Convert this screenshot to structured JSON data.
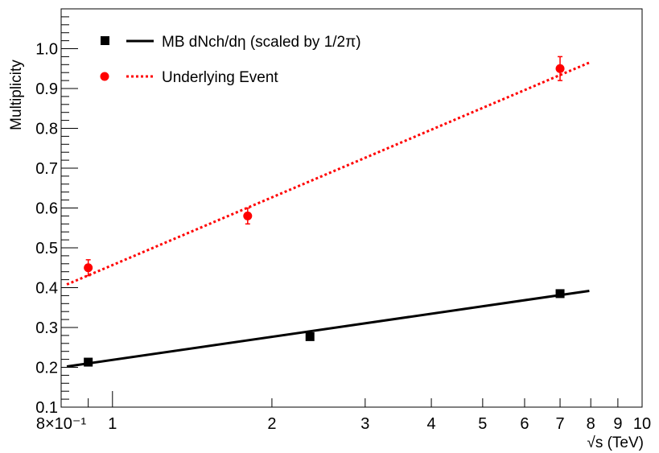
{
  "chart_data": {
    "type": "scatter",
    "xlabel": "√s (TeV)",
    "ylabel": "Multiplicity",
    "xscale": "log",
    "xlim": [
      0.8,
      10
    ],
    "ylim": [
      0.1,
      1.1
    ],
    "grid": false,
    "legend_placement": "top-left",
    "x_ticks": [
      0.8,
      1,
      2,
      3,
      4,
      5,
      6,
      7,
      8,
      9,
      10
    ],
    "x_tick_labels": [
      "8×10⁻¹",
      "1",
      "2",
      "3",
      "4",
      "5",
      "6",
      "7",
      "8",
      "9",
      "10"
    ],
    "y_ticks": [
      0.1,
      0.2,
      0.3,
      0.4,
      0.5,
      0.6,
      0.7,
      0.8,
      0.9,
      1.0
    ],
    "y_tick_labels": [
      "0.1",
      "0.2",
      "0.3",
      "0.4",
      "0.5",
      "0.6",
      "0.7",
      "0.8",
      "0.9",
      "1.0"
    ],
    "series": [
      {
        "name": "MB dNch/dη (scaled by 1/2π)",
        "marker": "square",
        "line_style": "solid",
        "color": "#000000",
        "points": [
          {
            "x": 0.9,
            "y": 0.213
          },
          {
            "x": 2.36,
            "y": 0.277
          },
          {
            "x": 7.0,
            "y": 0.385
          }
        ],
        "fit": {
          "x": [
            0.82,
            7.95
          ],
          "y": [
            0.202,
            0.392
          ]
        }
      },
      {
        "name": "Underlying Event",
        "marker": "circle",
        "line_style": "dotted",
        "color": "#ff0000",
        "points": [
          {
            "x": 0.9,
            "y": 0.45,
            "err": 0.02
          },
          {
            "x": 1.8,
            "y": 0.58,
            "err": 0.02
          },
          {
            "x": 7.0,
            "y": 0.95,
            "err": 0.03
          }
        ],
        "fit": {
          "x": [
            0.82,
            7.95
          ],
          "y": [
            0.408,
            0.965
          ]
        }
      }
    ]
  }
}
